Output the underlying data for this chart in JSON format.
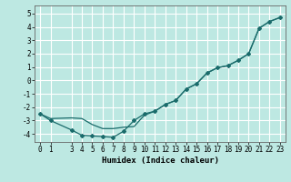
{
  "xlabel": "Humidex (Indice chaleur)",
  "xlim": [
    -0.5,
    23.5
  ],
  "ylim": [
    -4.6,
    5.6
  ],
  "yticks": [
    -4,
    -3,
    -2,
    -1,
    0,
    1,
    2,
    3,
    4,
    5
  ],
  "xticks": [
    0,
    1,
    3,
    4,
    5,
    6,
    7,
    8,
    9,
    10,
    11,
    12,
    13,
    14,
    15,
    16,
    17,
    18,
    19,
    20,
    21,
    22,
    23
  ],
  "background_color": "#bde8e2",
  "grid_color": "#ffffff",
  "line_color": "#1a6b6b",
  "line1_x": [
    0,
    1,
    3,
    4,
    5,
    6,
    7,
    8,
    9,
    10,
    11,
    12,
    13,
    14,
    15,
    16,
    17,
    18,
    19,
    20,
    21,
    22,
    23
  ],
  "line1_y": [
    -2.5,
    -3.0,
    -3.7,
    -4.1,
    -4.15,
    -4.2,
    -4.25,
    -3.8,
    -3.0,
    -2.5,
    -2.3,
    -1.8,
    -1.5,
    -0.65,
    -0.25,
    0.55,
    0.95,
    1.1,
    1.5,
    2.0,
    3.9,
    4.4,
    4.7
  ],
  "line2_x": [
    0,
    1,
    3,
    4,
    5,
    6,
    7,
    8,
    9,
    10,
    11,
    12,
    13,
    14,
    15,
    16,
    17,
    18,
    19,
    20,
    21,
    22,
    23
  ],
  "line2_y": [
    -2.5,
    -2.85,
    -2.8,
    -2.85,
    -3.3,
    -3.6,
    -3.6,
    -3.5,
    -3.45,
    -2.6,
    -2.3,
    -1.8,
    -1.5,
    -0.65,
    -0.25,
    0.55,
    0.95,
    1.1,
    1.5,
    2.0,
    3.9,
    4.4,
    4.7
  ],
  "tick_fontsize": 5.5,
  "xlabel_fontsize": 6.5
}
